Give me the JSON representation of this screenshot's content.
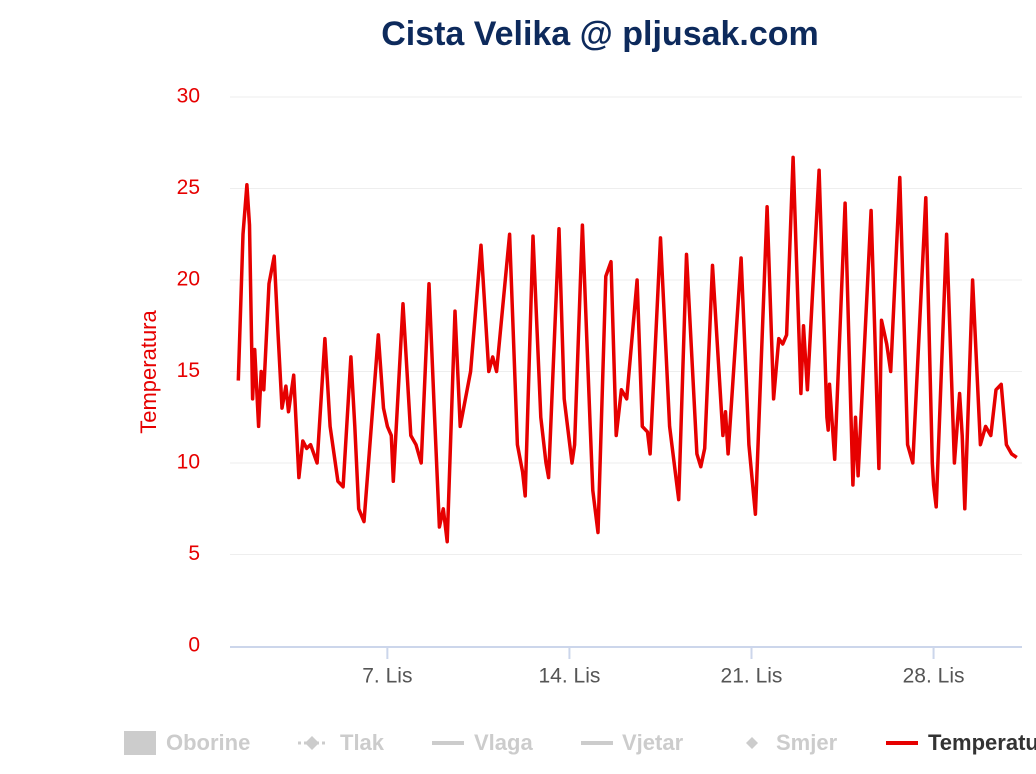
{
  "chart_data": {
    "type": "line",
    "title": "Cista Velika @ pljusak.com",
    "y_label": "Temperatura",
    "ylim": [
      0,
      30
    ],
    "yticks": [
      0,
      5,
      10,
      15,
      20,
      25,
      30
    ],
    "xlim": [
      0.95,
      31.4
    ],
    "xticks": [
      {
        "value": 7,
        "label": "7. Lis"
      },
      {
        "value": 14,
        "label": "14. Lis"
      },
      {
        "value": 21,
        "label": "21. Lis"
      },
      {
        "value": 28,
        "label": "28. Lis"
      }
    ],
    "grid": true,
    "legend": "bottom",
    "x": [
      1.27,
      1.45,
      1.6,
      1.7,
      1.82,
      1.9,
      2.05,
      2.15,
      2.25,
      2.45,
      2.65,
      2.8,
      2.95,
      3.1,
      3.2,
      3.4,
      3.6,
      3.75,
      3.9,
      4.05,
      4.3,
      4.6,
      4.8,
      5.1,
      5.3,
      5.6,
      5.75,
      5.9,
      6.1,
      6.3,
      6.65,
      6.85,
      7.0,
      7.15,
      7.23,
      7.6,
      7.9,
      8.1,
      8.3,
      8.6,
      8.8,
      9.0,
      9.15,
      9.3,
      9.6,
      9.8,
      10.0,
      10.2,
      10.6,
      10.9,
      11.05,
      11.2,
      11.7,
      12.0,
      12.2,
      12.3,
      12.6,
      12.9,
      13.1,
      13.2,
      13.6,
      13.8,
      14.1,
      14.2,
      14.5,
      14.8,
      14.9,
      15.1,
      15.4,
      15.6,
      15.8,
      16.0,
      16.2,
      16.6,
      16.8,
      17.0,
      17.1,
      17.5,
      17.85,
      18.2,
      18.5,
      18.9,
      19.05,
      19.2,
      19.5,
      19.9,
      20.0,
      20.1,
      20.6,
      20.9,
      21.15,
      21.6,
      21.85,
      22.05,
      22.2,
      22.35,
      22.6,
      22.9,
      23.0,
      23.15,
      23.6,
      23.9,
      23.95,
      24.0,
      24.2,
      24.6,
      24.9,
      25.0,
      25.1,
      25.6,
      25.9,
      26.0,
      26.2,
      26.35,
      26.7,
      27.0,
      27.2,
      27.7,
      27.95,
      28.0,
      28.1,
      28.5,
      28.8,
      29.0,
      29.1,
      29.2,
      29.5,
      29.8,
      30.0,
      30.2,
      30.4,
      30.6,
      30.8,
      31.0,
      31.2
    ],
    "series": [
      {
        "name": "Oborine",
        "color": "#cccccc",
        "visible": false,
        "symbol": "rect"
      },
      {
        "name": "Tlak",
        "color": "#cccccc",
        "visible": false,
        "symbol": "dash-diamond"
      },
      {
        "name": "Vlaga",
        "color": "#cccccc",
        "visible": false,
        "symbol": "line"
      },
      {
        "name": "Vjetar",
        "color": "#cccccc",
        "visible": false,
        "symbol": "line"
      },
      {
        "name": "Smjer",
        "color": "#cccccc",
        "visible": false,
        "symbol": "diamond"
      },
      {
        "name": "Temperatura",
        "color": "#e60000",
        "visible": true,
        "symbol": "line",
        "values": [
          14.5,
          22.5,
          25.2,
          23,
          13.5,
          16.2,
          12,
          15,
          14,
          19.8,
          21.3,
          17,
          13,
          14.2,
          12.8,
          14.8,
          9.2,
          11.2,
          10.8,
          11,
          10,
          16.8,
          12,
          9,
          8.7,
          15.8,
          12,
          7.5,
          6.8,
          10.5,
          17,
          13,
          12,
          11.5,
          9,
          18.7,
          11.5,
          11,
          10,
          19.8,
          13,
          6.5,
          7.5,
          5.7,
          18.3,
          12,
          13.5,
          15,
          21.9,
          15,
          15.8,
          15,
          22.5,
          11,
          9.5,
          8.2,
          22.4,
          12.5,
          10,
          9.2,
          22.8,
          13.5,
          10,
          11,
          23,
          12,
          8.5,
          6.2,
          20.2,
          21,
          11.5,
          14,
          13.5,
          20,
          12,
          11.7,
          10.5,
          22.3,
          12,
          8,
          21.4,
          10.5,
          9.8,
          10.8,
          20.8,
          11.5,
          12.8,
          10.5,
          21.2,
          11,
          7.2,
          24,
          13.5,
          16.8,
          16.5,
          17,
          26.7,
          13.8,
          17.5,
          14,
          26,
          12.5,
          11.8,
          14.3,
          10.2,
          24.2,
          8.8,
          12.5,
          9.3,
          23.8,
          9.7,
          17.8,
          16.5,
          15,
          25.6,
          11,
          10,
          24.5,
          10,
          8.8,
          7.6,
          22.5,
          10,
          13.8,
          11.5,
          7.5,
          20,
          11,
          12,
          11.5,
          14,
          14.3,
          11,
          10.5,
          10.3
        ]
      }
    ]
  }
}
